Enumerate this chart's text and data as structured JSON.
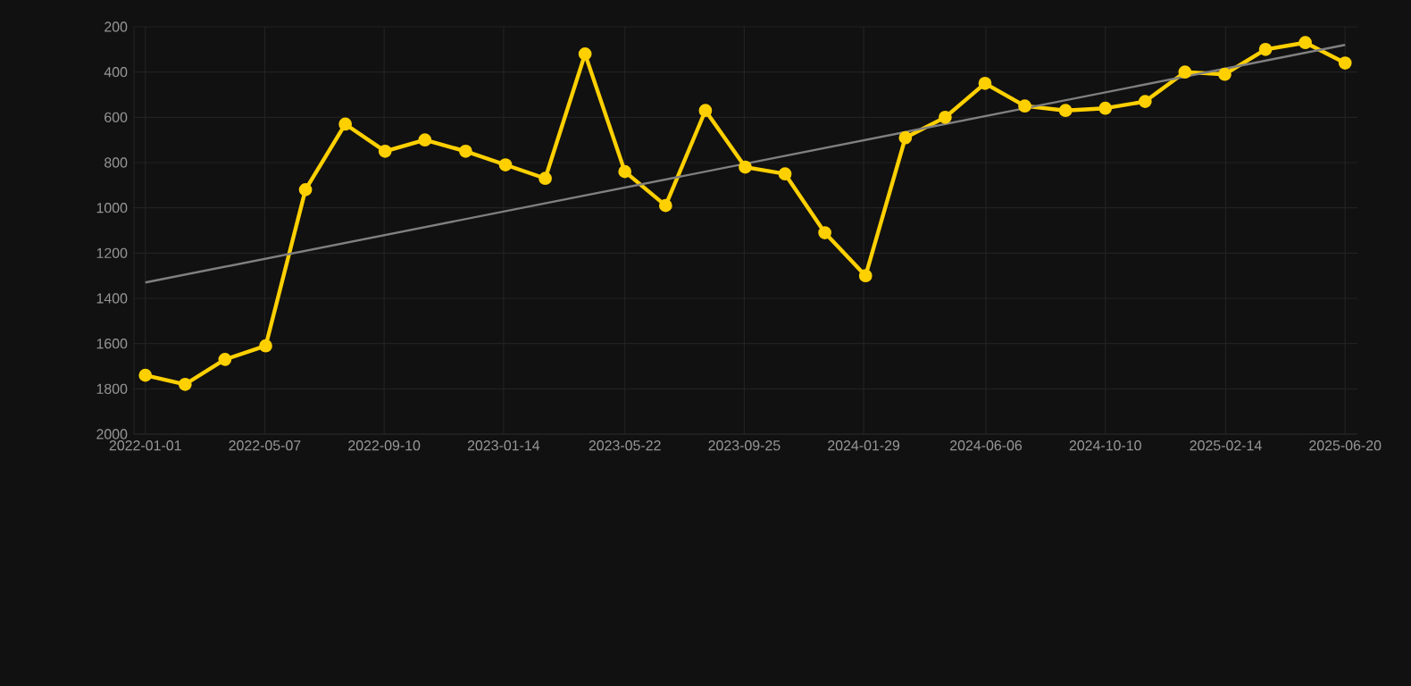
{
  "chart_data": {
    "type": "line",
    "marker": "circle",
    "grid": true,
    "x": [
      "2022-01-01",
      "2022-02-12",
      "2022-03-26",
      "2022-05-08",
      "2022-06-19",
      "2022-07-31",
      "2022-09-11",
      "2022-10-23",
      "2022-12-05",
      "2023-01-16",
      "2023-02-27",
      "2023-04-10",
      "2023-05-22",
      "2023-07-04",
      "2023-08-15",
      "2023-09-26",
      "2023-11-07",
      "2023-12-19",
      "2024-01-31",
      "2024-03-13",
      "2024-04-24",
      "2024-06-05",
      "2024-07-17",
      "2024-08-29",
      "2024-10-10",
      "2024-11-21",
      "2025-01-02",
      "2025-02-13",
      "2025-03-28",
      "2025-05-09",
      "2025-06-20"
    ],
    "series": [
      {
        "color": "#ffd000",
        "values": [
          1740,
          1780,
          1670,
          1610,
          920,
          630,
          750,
          700,
          750,
          810,
          870,
          320,
          840,
          990,
          570,
          820,
          850,
          1110,
          1300,
          690,
          600,
          450,
          550,
          570,
          560,
          530,
          400,
          410,
          300,
          270,
          360
        ]
      },
      {
        "type": "line",
        "marker": "none",
        "color": "#808080",
        "x": [
          "2022-01-01",
          "2025-06-20"
        ],
        "values": [
          1330,
          280
        ]
      }
    ],
    "xlim": [
      "2021-12-20",
      "2025-07-03"
    ],
    "xticks": [
      "2022-01-01",
      "2022-05-07",
      "2022-09-10",
      "2023-01-14",
      "2023-05-22",
      "2023-09-25",
      "2024-01-29",
      "2024-06-06",
      "2024-10-10",
      "2025-02-14",
      "2025-06-20"
    ],
    "ylim": [
      2000,
      200
    ],
    "yticks": [
      200,
      400,
      600,
      800,
      1000,
      1200,
      1400,
      1600,
      1800,
      2000
    ]
  }
}
